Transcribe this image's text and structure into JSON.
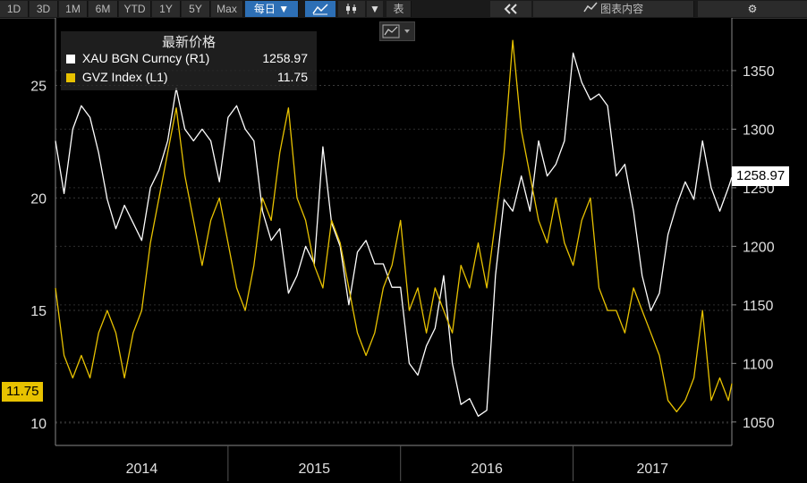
{
  "toolbar": {
    "periods": [
      "1D",
      "3D",
      "1M",
      "6M",
      "YTD",
      "1Y",
      "5Y",
      "Max"
    ],
    "frequency": "每日",
    "table_label": "表",
    "chart_content_label": "图表内容",
    "icons": [
      "line-chart-icon",
      "candlestick-icon",
      "dropdown-arrow-icon",
      "double-chevron-left-icon",
      "chart-content-icon",
      "gear-icon"
    ]
  },
  "legend": {
    "title": "最新价格",
    "items": [
      {
        "label": "XAU BGN Curncy (R1)",
        "value": "1258.97",
        "color": "#ffffff"
      },
      {
        "label": "GVZ Index (L1)",
        "value": "11.75",
        "color": "#e8c200"
      }
    ]
  },
  "last_value_tags": {
    "right": "1258.97",
    "left": "11.75"
  },
  "chart_data": {
    "type": "line",
    "x_labels": [
      "2014",
      "2015",
      "2016",
      "2017"
    ],
    "x_range": [
      2013.5,
      2017.42
    ],
    "y_left": {
      "ticks": [
        10,
        15,
        20,
        25
      ],
      "range": [
        9,
        28
      ]
    },
    "y_right": {
      "ticks": [
        1050,
        1100,
        1150,
        1200,
        1250,
        1300,
        1350
      ],
      "range": [
        1030,
        1395
      ]
    },
    "grid": true,
    "series": [
      {
        "name": "XAU BGN Curncy (R1)",
        "axis": "right",
        "color": "#ffffff",
        "points": [
          [
            2013.5,
            1290
          ],
          [
            2013.55,
            1245
          ],
          [
            2013.6,
            1300
          ],
          [
            2013.65,
            1320
          ],
          [
            2013.7,
            1310
          ],
          [
            2013.75,
            1280
          ],
          [
            2013.8,
            1240
          ],
          [
            2013.85,
            1215
          ],
          [
            2013.9,
            1235
          ],
          [
            2013.95,
            1220
          ],
          [
            2014.0,
            1205
          ],
          [
            2014.05,
            1250
          ],
          [
            2014.1,
            1265
          ],
          [
            2014.15,
            1290
          ],
          [
            2014.2,
            1335
          ],
          [
            2014.25,
            1300
          ],
          [
            2014.3,
            1290
          ],
          [
            2014.35,
            1300
          ],
          [
            2014.4,
            1290
          ],
          [
            2014.45,
            1255
          ],
          [
            2014.5,
            1310
          ],
          [
            2014.55,
            1320
          ],
          [
            2014.6,
            1300
          ],
          [
            2014.65,
            1290
          ],
          [
            2014.7,
            1230
          ],
          [
            2014.75,
            1205
          ],
          [
            2014.8,
            1215
          ],
          [
            2014.85,
            1160
          ],
          [
            2014.9,
            1175
          ],
          [
            2014.95,
            1200
          ],
          [
            2015.0,
            1185
          ],
          [
            2015.05,
            1285
          ],
          [
            2015.1,
            1220
          ],
          [
            2015.15,
            1200
          ],
          [
            2015.2,
            1150
          ],
          [
            2015.25,
            1195
          ],
          [
            2015.3,
            1205
          ],
          [
            2015.35,
            1185
          ],
          [
            2015.4,
            1185
          ],
          [
            2015.45,
            1165
          ],
          [
            2015.5,
            1165
          ],
          [
            2015.55,
            1100
          ],
          [
            2015.6,
            1090
          ],
          [
            2015.65,
            1115
          ],
          [
            2015.7,
            1130
          ],
          [
            2015.75,
            1175
          ],
          [
            2015.8,
            1100
          ],
          [
            2015.85,
            1065
          ],
          [
            2015.9,
            1070
          ],
          [
            2015.95,
            1055
          ],
          [
            2016.0,
            1060
          ],
          [
            2016.05,
            1175
          ],
          [
            2016.1,
            1240
          ],
          [
            2016.15,
            1230
          ],
          [
            2016.2,
            1260
          ],
          [
            2016.25,
            1230
          ],
          [
            2016.3,
            1290
          ],
          [
            2016.35,
            1260
          ],
          [
            2016.4,
            1270
          ],
          [
            2016.45,
            1290
          ],
          [
            2016.5,
            1365
          ],
          [
            2016.55,
            1340
          ],
          [
            2016.6,
            1325
          ],
          [
            2016.65,
            1330
          ],
          [
            2016.7,
            1320
          ],
          [
            2016.75,
            1260
          ],
          [
            2016.8,
            1270
          ],
          [
            2016.85,
            1230
          ],
          [
            2016.9,
            1175
          ],
          [
            2016.95,
            1145
          ],
          [
            2017.0,
            1160
          ],
          [
            2017.05,
            1210
          ],
          [
            2017.1,
            1235
          ],
          [
            2017.15,
            1255
          ],
          [
            2017.2,
            1240
          ],
          [
            2017.25,
            1290
          ],
          [
            2017.3,
            1250
          ],
          [
            2017.35,
            1230
          ],
          [
            2017.4,
            1250
          ],
          [
            2017.42,
            1258.97
          ]
        ]
      },
      {
        "name": "GVZ Index (L1)",
        "axis": "left",
        "color": "#e8c200",
        "points": [
          [
            2013.5,
            16
          ],
          [
            2013.55,
            13
          ],
          [
            2013.6,
            12
          ],
          [
            2013.65,
            13
          ],
          [
            2013.7,
            12
          ],
          [
            2013.75,
            14
          ],
          [
            2013.8,
            15
          ],
          [
            2013.85,
            14
          ],
          [
            2013.9,
            12
          ],
          [
            2013.95,
            14
          ],
          [
            2014.0,
            15
          ],
          [
            2014.05,
            18
          ],
          [
            2014.1,
            20
          ],
          [
            2014.15,
            22
          ],
          [
            2014.2,
            24
          ],
          [
            2014.25,
            21
          ],
          [
            2014.3,
            19
          ],
          [
            2014.35,
            17
          ],
          [
            2014.4,
            19
          ],
          [
            2014.45,
            20
          ],
          [
            2014.5,
            18
          ],
          [
            2014.55,
            16
          ],
          [
            2014.6,
            15
          ],
          [
            2014.65,
            17
          ],
          [
            2014.7,
            20
          ],
          [
            2014.75,
            19
          ],
          [
            2014.8,
            22
          ],
          [
            2014.85,
            24
          ],
          [
            2014.9,
            20
          ],
          [
            2014.95,
            19
          ],
          [
            2015.0,
            17
          ],
          [
            2015.05,
            16
          ],
          [
            2015.1,
            19
          ],
          [
            2015.15,
            18
          ],
          [
            2015.2,
            16
          ],
          [
            2015.25,
            14
          ],
          [
            2015.3,
            13
          ],
          [
            2015.35,
            14
          ],
          [
            2015.4,
            16
          ],
          [
            2015.45,
            17
          ],
          [
            2015.5,
            19
          ],
          [
            2015.55,
            15
          ],
          [
            2015.6,
            16
          ],
          [
            2015.65,
            14
          ],
          [
            2015.7,
            16
          ],
          [
            2015.75,
            15
          ],
          [
            2015.8,
            14
          ],
          [
            2015.85,
            17
          ],
          [
            2015.9,
            16
          ],
          [
            2015.95,
            18
          ],
          [
            2016.0,
            16
          ],
          [
            2016.05,
            19
          ],
          [
            2016.1,
            22
          ],
          [
            2016.15,
            27
          ],
          [
            2016.2,
            23
          ],
          [
            2016.25,
            21
          ],
          [
            2016.3,
            19
          ],
          [
            2016.35,
            18
          ],
          [
            2016.4,
            20
          ],
          [
            2016.45,
            18
          ],
          [
            2016.5,
            17
          ],
          [
            2016.55,
            19
          ],
          [
            2016.6,
            20
          ],
          [
            2016.65,
            16
          ],
          [
            2016.7,
            15
          ],
          [
            2016.75,
            15
          ],
          [
            2016.8,
            14
          ],
          [
            2016.85,
            16
          ],
          [
            2016.9,
            15
          ],
          [
            2016.95,
            14
          ],
          [
            2017.0,
            13
          ],
          [
            2017.05,
            11
          ],
          [
            2017.1,
            10.5
          ],
          [
            2017.15,
            11
          ],
          [
            2017.2,
            12
          ],
          [
            2017.25,
            15
          ],
          [
            2017.3,
            11
          ],
          [
            2017.35,
            12
          ],
          [
            2017.4,
            11
          ],
          [
            2017.42,
            11.75
          ]
        ]
      }
    ]
  }
}
